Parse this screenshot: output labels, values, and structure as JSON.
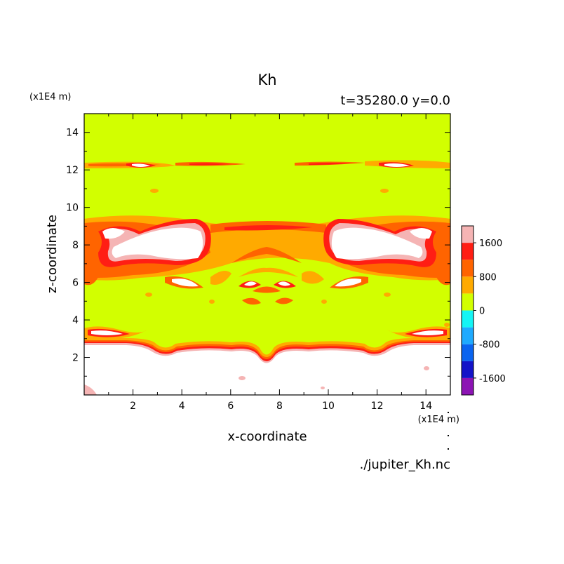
{
  "chart_data": {
    "type": "heatmap",
    "title": "Kh",
    "subtitle": "t=35280.0 y=0.0",
    "xlabel": "x-coordinate",
    "ylabel": "z-coordinate",
    "x_unit": "(x1E4 m)",
    "y_unit": "(x1E4 m)",
    "footer": "./jupiter_Kh.nc",
    "xlim": [
      0,
      15
    ],
    "ylim": [
      0,
      15
    ],
    "x_ticks": [
      "2",
      "4",
      "6",
      "8",
      "10",
      "12",
      "14"
    ],
    "y_ticks": [
      "2",
      "4",
      "6",
      "8",
      "10",
      "12",
      "14"
    ],
    "colorbar": {
      "levels": [
        -2000,
        -1600,
        -1200,
        -800,
        -400,
        0,
        400,
        800,
        1200,
        1600,
        2000
      ],
      "colors": [
        "#8c14b4",
        "#1414c8",
        "#0a64f0",
        "#1eaaff",
        "#14f5f5",
        "#d2ff00",
        "#ffaa00",
        "#ff6400",
        "#ff1e14",
        "#f5b4b4"
      ],
      "tick_labels": [
        "-1600",
        "-800",
        "0",
        "800",
        "1600"
      ],
      "tick_values": [
        -1600,
        -800,
        0,
        800,
        1600
      ]
    },
    "background_color": "#d2ff00",
    "high_value_color": "#ffffff"
  }
}
